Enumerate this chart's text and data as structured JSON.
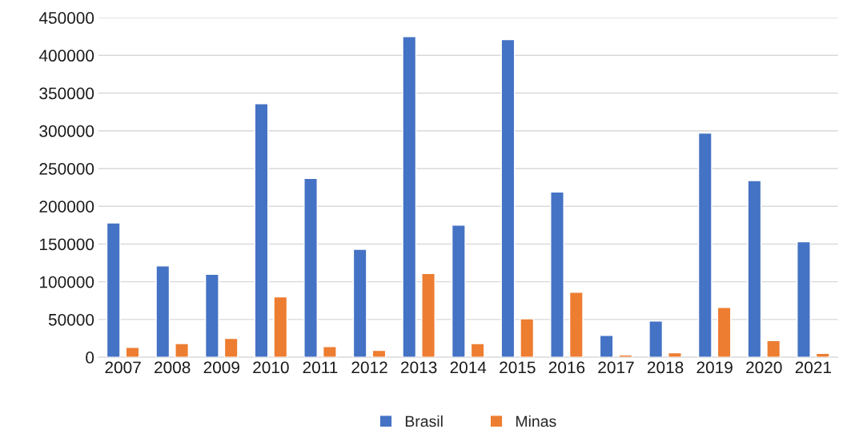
{
  "chart_data": {
    "type": "bar",
    "categories": [
      "2007",
      "2008",
      "2009",
      "2010",
      "2011",
      "2012",
      "2013",
      "2014",
      "2015",
      "2016",
      "2017",
      "2018",
      "2019",
      "2020",
      "2021"
    ],
    "series": [
      {
        "name": "Brasil",
        "color": "#4472c4",
        "values": [
          178000,
          121000,
          110000,
          336000,
          237000,
          143000,
          425000,
          175000,
          421000,
          219000,
          29000,
          48000,
          297000,
          234000,
          153000
        ]
      },
      {
        "name": "Minas",
        "color": "#ed7d31",
        "values": [
          13000,
          18000,
          25000,
          80000,
          14000,
          9000,
          111000,
          18000,
          51000,
          86000,
          3000,
          6000,
          66000,
          22000,
          5000
        ]
      }
    ],
    "ylim": [
      0,
      450000
    ],
    "yticks": [
      0,
      50000,
      100000,
      150000,
      200000,
      250000,
      300000,
      350000,
      400000,
      450000
    ],
    "grid": "y",
    "legend": "bottom"
  }
}
